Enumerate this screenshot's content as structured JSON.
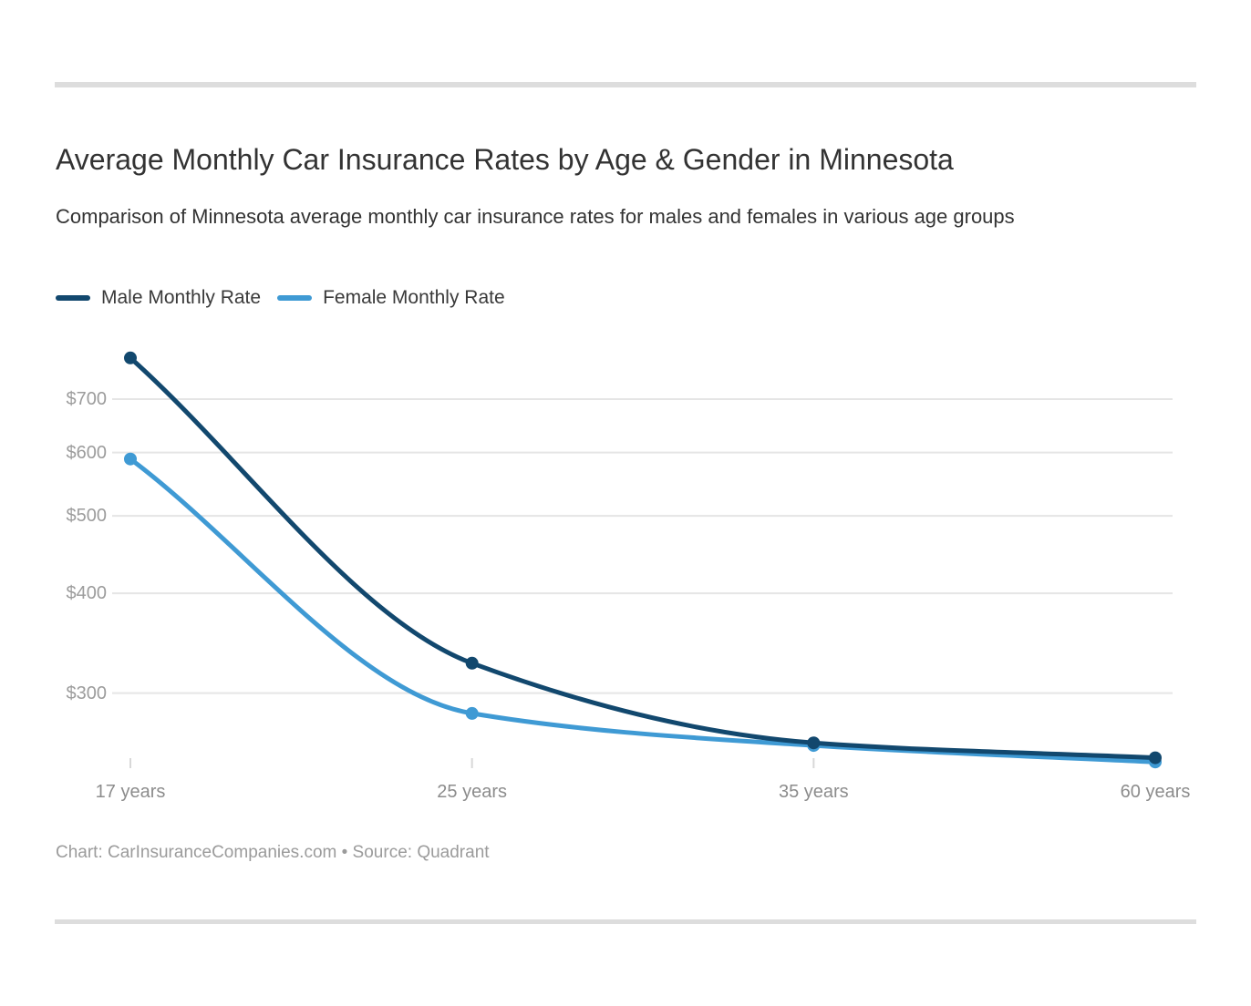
{
  "chart_data": {
    "type": "line",
    "title": "Average Monthly Car Insurance Rates by Age & Gender in Minnesota",
    "subtitle": "Comparison of Minnesota average monthly car insurance rates for males and females in various age groups",
    "categories": [
      "17 years",
      "25 years",
      "35 years",
      "60 years"
    ],
    "series": [
      {
        "name": "Male Monthly Rate",
        "color": "#12486e",
        "values": [
          788,
          327,
          260,
          249
        ]
      },
      {
        "name": "Female Monthly Rate",
        "color": "#3f9ad4",
        "values": [
          589,
          283,
          258,
          246
        ]
      }
    ],
    "y_axis": {
      "scale": "log",
      "tick_prefix": "$",
      "ticks": [
        {
          "label": "$700",
          "value": 700
        },
        {
          "label": "$600",
          "value": 600
        },
        {
          "label": "$500",
          "value": 500
        },
        {
          "label": "$400",
          "value": 400
        },
        {
          "label": "$300",
          "value": 300
        }
      ],
      "range": [
        242,
        840
      ]
    },
    "x_axis": {
      "type": "categorical"
    },
    "grid": "horizontal",
    "legend_position": "top-left",
    "line_unit": "USD per month"
  },
  "footer": {
    "attribution": "Chart: CarInsuranceCompanies.com • Source: Quadrant"
  },
  "colors": {
    "male_line": "#12486e",
    "female_line": "#3f9ad4",
    "gridline": "#e5e5e5",
    "axis_tick": "#d8d8d8",
    "text_primary": "#333333",
    "text_axis": "#9c9c9c",
    "divider": "#dddddd"
  }
}
